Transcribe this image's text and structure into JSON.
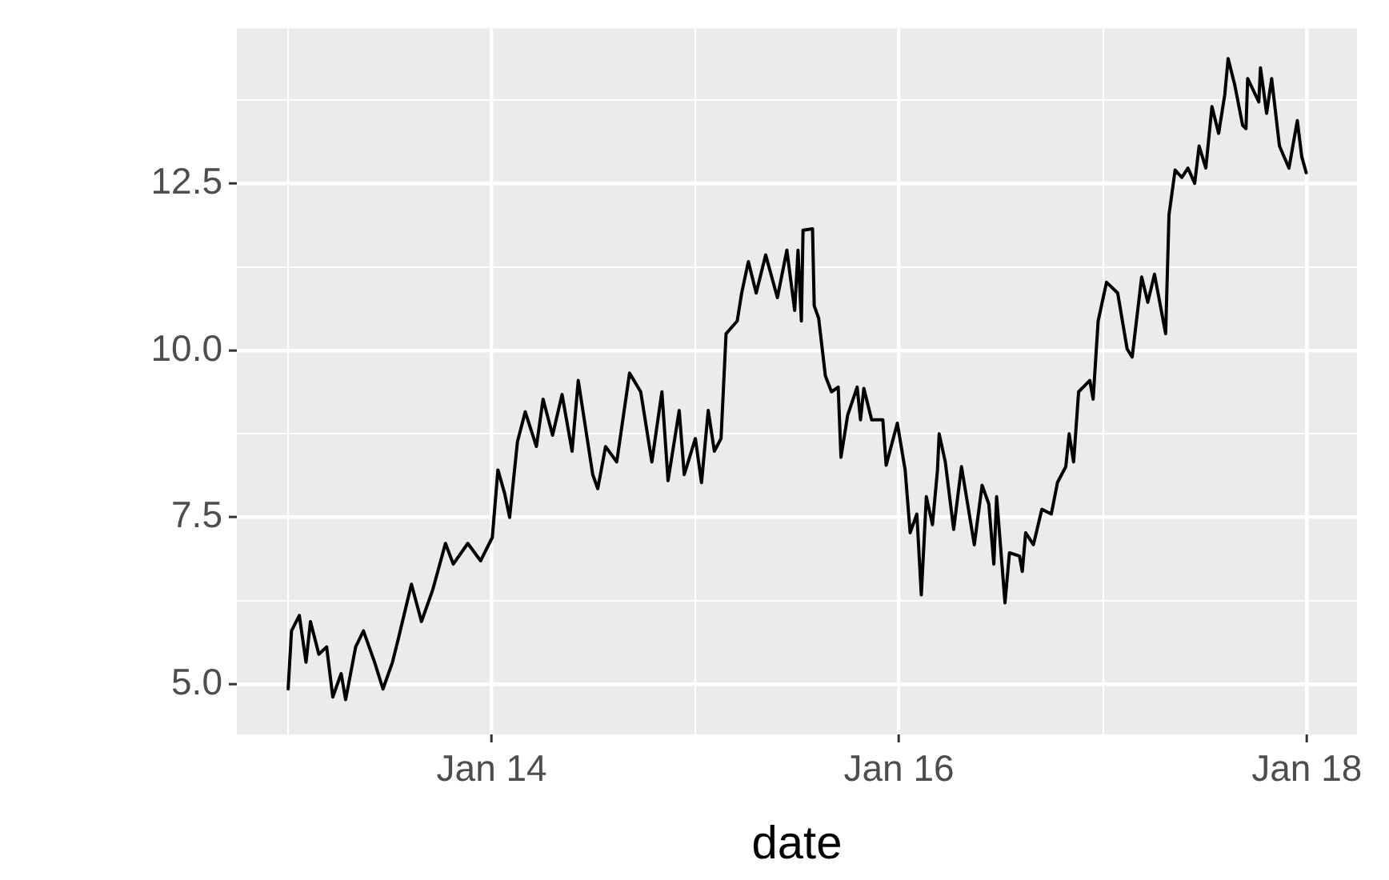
{
  "chart_data": {
    "type": "line",
    "xlabel": "date",
    "xlim": [
      "2012-10-01",
      "2018-04-01"
    ],
    "xticks": [
      {
        "value": "2013-01-01",
        "label": null
      },
      {
        "value": "2014-01-01",
        "label": "Jan 14"
      },
      {
        "value": "2015-01-01",
        "label": null
      },
      {
        "value": "2016-01-01",
        "label": "Jan 16"
      },
      {
        "value": "2017-01-01",
        "label": null
      },
      {
        "value": "2018-01-01",
        "label": "Jan 18"
      }
    ],
    "ylim": [
      4.25,
      14.82
    ],
    "yticks": [
      {
        "value": 5,
        "label": "5.0"
      },
      {
        "value": 6.25,
        "label": null
      },
      7.5,
      {
        "value": 8.75,
        "label": null
      },
      {
        "value": 10,
        "label": "10.0"
      },
      {
        "value": 11.25,
        "label": null
      },
      12.5,
      {
        "value": 13.75,
        "label": null
      }
    ],
    "grid": true,
    "legend": false,
    "marker": "none",
    "line_style": "solid",
    "series": [
      {
        "color": "#000000",
        "x": [
          "2013-01-01",
          "2013-01-07",
          "2013-01-21",
          "2013-02-02",
          "2013-02-10",
          "2013-02-25",
          "2013-03-11",
          "2013-03-22",
          "2013-04-06",
          "2013-04-14",
          "2013-05-02",
          "2013-05-16",
          "2013-06-05",
          "2013-06-20",
          "2013-07-07",
          "2013-07-18",
          "2013-08-10",
          "2013-08-28",
          "2013-09-17",
          "2013-10-10",
          "2013-10-24",
          "2013-11-19",
          "2013-12-12",
          "2014-01-02",
          "2014-01-12",
          "2014-01-24",
          "2014-02-02",
          "2014-02-16",
          "2014-03-02",
          "2014-03-22",
          "2014-04-03",
          "2014-04-20",
          "2014-05-07",
          "2014-05-25",
          "2014-06-05",
          "2014-07-01",
          "2014-07-10",
          "2014-07-24",
          "2014-08-13",
          "2014-09-05",
          "2014-09-25",
          "2014-10-15",
          "2014-11-02",
          "2014-11-13",
          "2014-12-03",
          "2014-12-12",
          "2015-01-01",
          "2015-01-12",
          "2015-01-24",
          "2015-02-04",
          "2015-02-16",
          "2015-02-25",
          "2015-03-17",
          "2015-03-25",
          "2015-04-06",
          "2015-04-20",
          "2015-05-07",
          "2015-05-28",
          "2015-06-14",
          "2015-06-28",
          "2015-07-04",
          "2015-07-10",
          "2015-07-13",
          "2015-07-30",
          "2015-08-02",
          "2015-08-10",
          "2015-08-22",
          "2015-09-02",
          "2015-09-14",
          "2015-09-19",
          "2015-10-01",
          "2015-10-18",
          "2015-10-24",
          "2015-10-30",
          "2015-11-13",
          "2015-12-03",
          "2015-12-09",
          "2015-12-29",
          "2016-01-12",
          "2016-01-21",
          "2016-02-02",
          "2016-02-10",
          "2016-02-19",
          "2016-03-01",
          "2016-03-10",
          "2016-03-13",
          "2016-03-24",
          "2016-04-08",
          "2016-04-22",
          "2016-05-15",
          "2016-05-29",
          "2016-06-10",
          "2016-06-19",
          "2016-06-24",
          "2016-07-09",
          "2016-07-17",
          "2016-08-04",
          "2016-08-09",
          "2016-08-15",
          "2016-08-29",
          "2016-09-13",
          "2016-09-30",
          "2016-10-11",
          "2016-10-26",
          "2016-11-01",
          "2016-11-09",
          "2016-11-18",
          "2016-12-08",
          "2016-12-14",
          "2016-12-23",
          "2017-01-07",
          "2017-01-27",
          "2017-02-13",
          "2017-02-22",
          "2017-03-11",
          "2017-03-22",
          "2017-04-03",
          "2017-04-23",
          "2017-04-29",
          "2017-05-10",
          "2017-05-22",
          "2017-06-02",
          "2017-06-14",
          "2017-06-22",
          "2017-07-04",
          "2017-07-15",
          "2017-07-27",
          "2017-08-07",
          "2017-08-13",
          "2017-08-25",
          "2017-09-08",
          "2017-09-14",
          "2017-09-17",
          "2017-10-07",
          "2017-10-10",
          "2017-10-21",
          "2017-10-30",
          "2017-11-13",
          "2017-11-30",
          "2017-12-15",
          "2017-12-23",
          "2017-12-31"
        ],
        "values": [
          4.93,
          5.8,
          6.03,
          5.33,
          5.94,
          5.45,
          5.56,
          4.81,
          5.16,
          4.77,
          5.56,
          5.8,
          5.33,
          4.93,
          5.33,
          5.7,
          6.5,
          5.94,
          6.41,
          7.11,
          6.8,
          7.11,
          6.85,
          7.2,
          8.21,
          7.86,
          7.5,
          8.63,
          9.08,
          8.56,
          9.27,
          8.73,
          9.34,
          8.49,
          9.55,
          8.14,
          7.93,
          8.56,
          8.33,
          9.66,
          9.38,
          8.33,
          9.38,
          8.05,
          9.1,
          8.14,
          8.68,
          8.02,
          9.1,
          8.49,
          8.68,
          10.25,
          10.44,
          10.86,
          11.33,
          10.86,
          11.43,
          10.79,
          11.5,
          10.6,
          11.5,
          10.44,
          11.8,
          11.82,
          10.67,
          10.48,
          9.62,
          9.38,
          9.45,
          8.4,
          9.03,
          9.45,
          8.96,
          9.43,
          8.96,
          8.96,
          8.28,
          8.91,
          8.21,
          7.27,
          7.55,
          6.34,
          7.81,
          7.39,
          8.21,
          8.75,
          8.33,
          7.32,
          8.26,
          7.09,
          7.98,
          7.7,
          6.8,
          7.81,
          6.22,
          6.97,
          6.92,
          6.69,
          7.27,
          7.09,
          7.62,
          7.55,
          8.02,
          8.26,
          8.75,
          8.33,
          9.38,
          9.55,
          9.27,
          10.44,
          11.02,
          10.86,
          10.02,
          9.9,
          11.1,
          10.72,
          11.14,
          10.25,
          12.03,
          12.7,
          12.59,
          12.73,
          12.5,
          13.06,
          12.73,
          13.65,
          13.25,
          13.83,
          14.37,
          13.97,
          13.37,
          13.32,
          14.07,
          13.72,
          14.23,
          13.55,
          14.07,
          13.06,
          12.73,
          13.44,
          12.9,
          12.66
        ]
      }
    ]
  }
}
